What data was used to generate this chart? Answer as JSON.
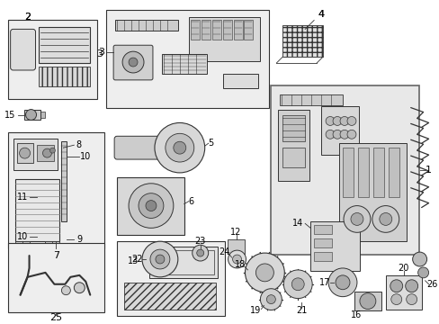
{
  "bg_color": "#ffffff",
  "fig_width": 4.89,
  "fig_height": 3.6,
  "dpi": 100,
  "label_color": "#000000",
  "line_color": "#333333",
  "part_fill": "#e8e8e8",
  "box_fill": "#eeeeee"
}
